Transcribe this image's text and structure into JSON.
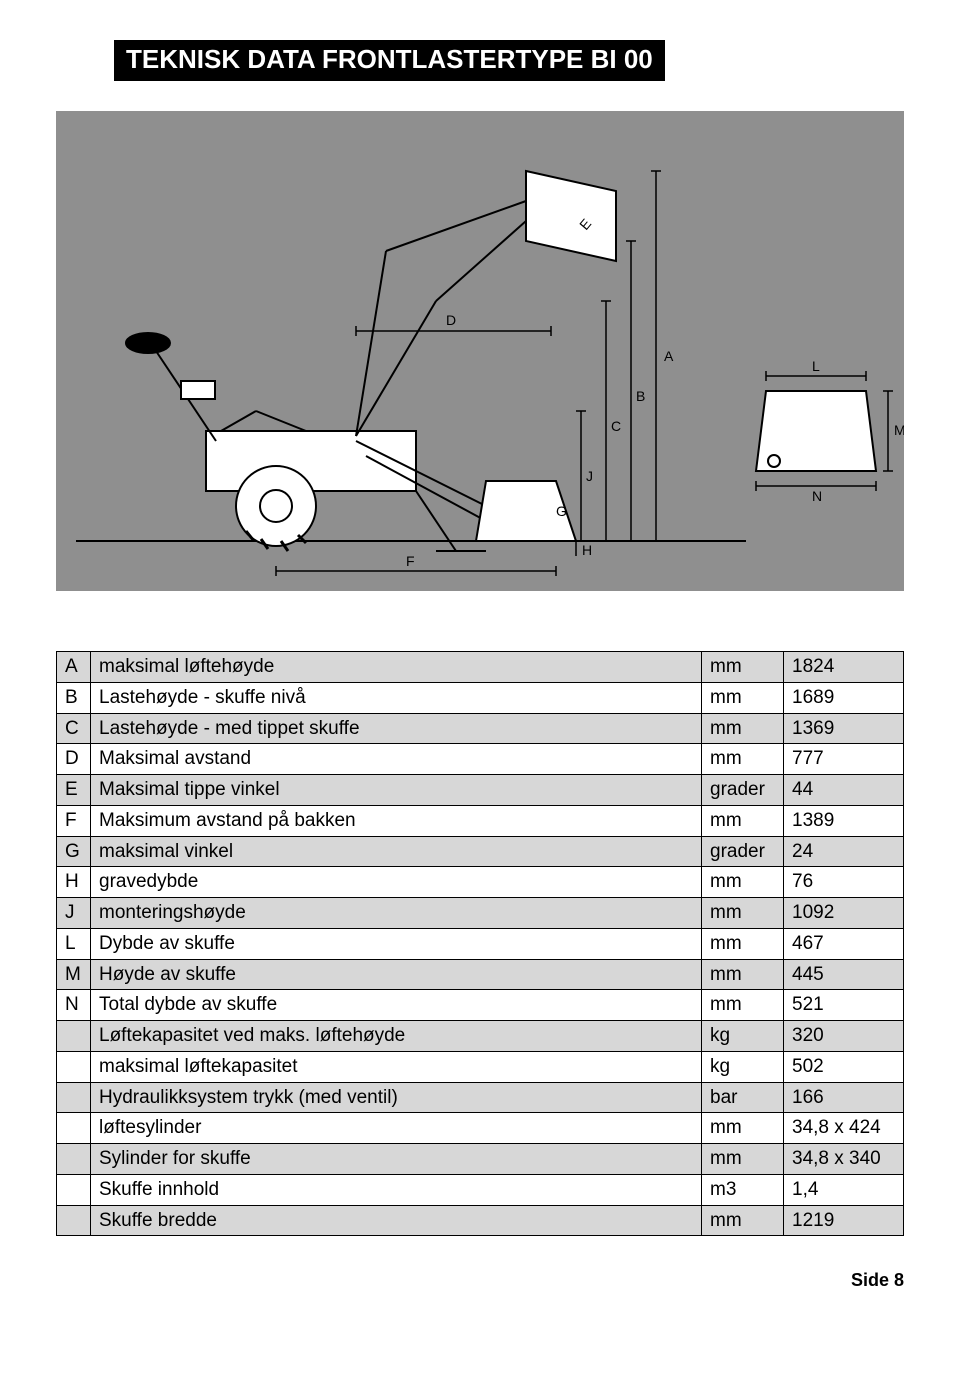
{
  "title": "TEKNISK DATA FRONTLASTERTYPE BI 00",
  "diagram": {
    "background_color": "#8f8f8f",
    "stroke_color": "#000000",
    "fill_color": "#ffffff",
    "dimension_labels": [
      "A",
      "B",
      "C",
      "D",
      "E",
      "F",
      "G",
      "H",
      "J",
      "L",
      "M",
      "N"
    ]
  },
  "table": {
    "header_bg": "#d7d7d7",
    "alt_bg": "#ffffff",
    "border_color": "#000000",
    "rows": [
      {
        "letter": "A",
        "label": "maksimal løftehøyde",
        "unit": "mm",
        "value": "1824"
      },
      {
        "letter": "B",
        "label": "Lastehøyde - skuffe nivå",
        "unit": "mm",
        "value": "1689"
      },
      {
        "letter": "C",
        "label": "Lastehøyde - med tippet skuffe",
        "unit": "mm",
        "value": "1369"
      },
      {
        "letter": "D",
        "label": "Maksimal avstand",
        "unit": "mm",
        "value": "777"
      },
      {
        "letter": "E",
        "label": "Maksimal tippe vinkel",
        "unit": "grader",
        "value": "44"
      },
      {
        "letter": "F",
        "label": "Maksimum avstand på bakken",
        "unit": "mm",
        "value": "1389"
      },
      {
        "letter": "G",
        "label": "maksimal vinkel",
        "unit": "grader",
        "value": "24"
      },
      {
        "letter": "H",
        "label": "gravedybde",
        "unit": "mm",
        "value": "76"
      },
      {
        "letter": "J",
        "label": "monteringshøyde",
        "unit": "mm",
        "value": "1092"
      },
      {
        "letter": "L",
        "label": "Dybde av skuffe",
        "unit": "mm",
        "value": "467"
      },
      {
        "letter": "M",
        "label": "Høyde av skuffe",
        "unit": "mm",
        "value": "445"
      },
      {
        "letter": "N",
        "label": "Total dybde av skuffe",
        "unit": "mm",
        "value": "521"
      },
      {
        "letter": "",
        "label": "Løftekapasitet ved maks. løftehøyde",
        "unit": "kg",
        "value": "320"
      },
      {
        "letter": "",
        "label": "maksimal løftekapasitet",
        "unit": "kg",
        "value": "502"
      },
      {
        "letter": "",
        "label": "Hydraulikksystem trykk (med ventil)",
        "unit": "bar",
        "value": "166"
      },
      {
        "letter": "",
        "label": "løftesylinder",
        "unit": "mm",
        "value": "34,8 x 424"
      },
      {
        "letter": "",
        "label": "Sylinder for skuffe",
        "unit": "mm",
        "value": "34,8 x 340"
      },
      {
        "letter": "",
        "label": "Skuffe innhold",
        "unit": "m3",
        "value": "1,4"
      },
      {
        "letter": "",
        "label": "Skuffe bredde",
        "unit": "mm",
        "value": "1219"
      }
    ]
  },
  "page_label": "Side 8"
}
